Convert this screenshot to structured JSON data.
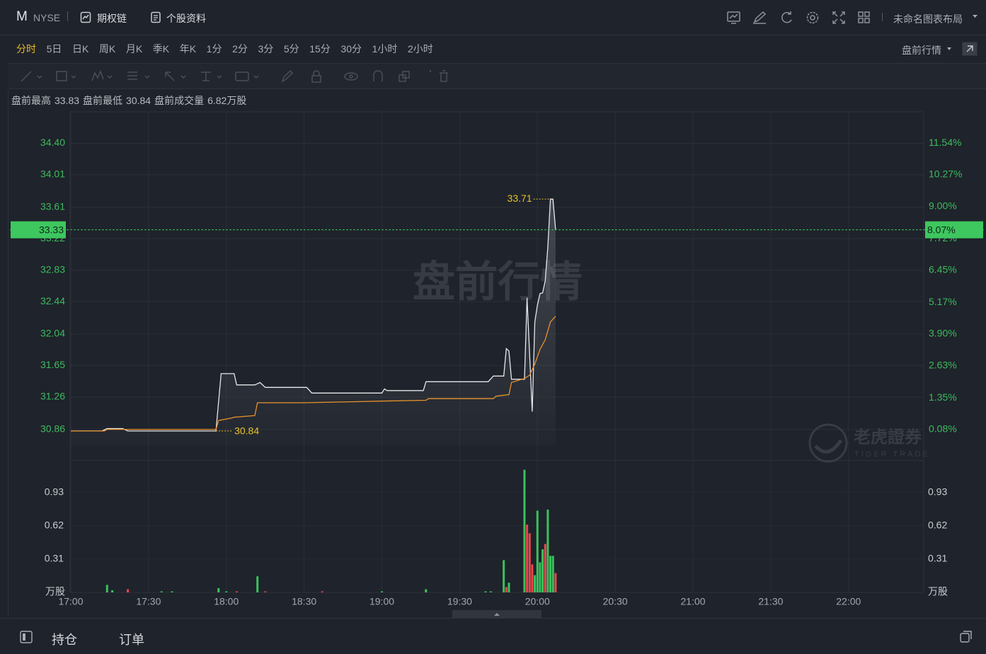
{
  "header": {
    "symbol": "M",
    "exchange": "NYSE",
    "links": [
      "期权链",
      "个股资料"
    ],
    "layout": "未命名图表布局"
  },
  "periods": {
    "items": [
      "分时",
      "5日",
      "日K",
      "周K",
      "月K",
      "季K",
      "年K",
      "1分",
      "2分",
      "3分",
      "5分",
      "15分",
      "30分",
      "1小时",
      "2小时"
    ],
    "active": 0,
    "session": "盘前行情"
  },
  "info": {
    "items": [
      {
        "label": "盘前最高",
        "value": 33.83
      },
      {
        "label": "盘前最低",
        "value": 30.84
      },
      {
        "label": "盘前成交量",
        "value": "6.82万股"
      }
    ]
  },
  "chart_data": {
    "type": "line",
    "xlim": [
      "17:00",
      "22:29"
    ],
    "xticks": [
      "17:00",
      "17:30",
      "18:00",
      "18:30",
      "19:00",
      "19:30",
      "20:00",
      "20:30",
      "21:00",
      "21:30",
      "22:00"
    ],
    "ylim": [
      30.48,
      34.79
    ],
    "yticks": [
      {
        "value": 34.4,
        "label": "34.40"
      },
      34.01,
      33.61,
      33.22,
      32.83,
      32.44,
      32.04,
      31.65,
      31.26,
      30.86
    ],
    "y2lim": [
      -1.14,
      12.79
    ],
    "y2ticks": [
      {
        "value": 11.54,
        "label": "11.54%"
      },
      {
        "value": 10.27,
        "label": "10.27%"
      },
      {
        "value": 9.0,
        "label": "9.00%"
      },
      {
        "value": 7.72,
        "label": "7.72%"
      },
      {
        "value": 6.45,
        "label": "6.45%"
      },
      {
        "value": 5.17,
        "label": "5.17%"
      },
      {
        "value": 3.9,
        "label": "3.90%"
      },
      {
        "value": 2.63,
        "label": "2.63%"
      },
      {
        "value": 1.35,
        "label": "1.35%"
      },
      {
        "value": 0.08,
        "label": "0.08%"
      }
    ],
    "grid": true,
    "series": [
      {
        "color": "#e6e8ec",
        "x": [
          "17:00",
          "17:12",
          "17:14",
          "17:20",
          "17:22",
          "17:56",
          "17:58",
          "18:03",
          "18:04",
          "18:11",
          "18:13",
          "18:15",
          "18:31",
          "18:33",
          "19:00",
          "19:01",
          "19:02",
          "19:16",
          "19:17",
          "19:41",
          "19:43",
          "19:47",
          "19:48",
          "19:49",
          "19:50",
          "19:55",
          "19:56",
          "19:58",
          "19:59",
          "20:00",
          "20:01",
          "20:02",
          "20:03",
          "20:04",
          "20:05",
          "20:06",
          "20:07"
        ],
        "values": [
          30.84,
          30.84,
          30.87,
          30.87,
          30.84,
          30.84,
          31.55,
          31.55,
          31.41,
          31.41,
          31.44,
          31.38,
          31.38,
          31.31,
          31.31,
          31.36,
          31.34,
          31.34,
          31.45,
          31.45,
          31.52,
          31.52,
          31.86,
          31.83,
          31.48,
          31.48,
          32.49,
          31.08,
          32.19,
          32.4,
          32.54,
          32.55,
          32.7,
          33.11,
          33.71,
          33.71,
          33.33
        ]
      },
      {
        "color": "#e8922e",
        "x": [
          "17:00",
          "17:13",
          "17:14",
          "17:56",
          "17:57",
          "18:02",
          "18:03",
          "18:11",
          "18:12",
          "18:30",
          "19:00",
          "19:17",
          "19:18",
          "19:43",
          "19:44",
          "19:49",
          "19:50",
          "19:55",
          "19:57",
          "19:59",
          "20:01",
          "20:03",
          "20:05",
          "20:07"
        ],
        "values": [
          30.84,
          30.84,
          30.86,
          30.86,
          30.97,
          31.0,
          31.01,
          31.03,
          31.19,
          31.19,
          31.21,
          31.22,
          31.24,
          31.24,
          31.27,
          31.29,
          31.44,
          31.49,
          31.53,
          31.67,
          31.85,
          31.97,
          32.19,
          32.26
        ]
      }
    ],
    "max_annotation": {
      "x": "20:05",
      "value": 33.71
    },
    "min_annotation": {
      "x": "17:56",
      "value": 30.84
    },
    "last_price": 33.33,
    "last_pct": {
      "value": 8.07,
      "label": "8.07%"
    },
    "volume": {
      "unit": "万股",
      "ylim": [
        0,
        1.23
      ],
      "yticks": [
        0.93,
        0.62,
        0.31
      ],
      "x": [
        "17:14",
        "17:16",
        "17:22",
        "17:35",
        "17:39",
        "17:57",
        "18:00",
        "18:04",
        "18:12",
        "18:15",
        "18:37",
        "19:00",
        "19:17",
        "19:40",
        "19:42",
        "19:47",
        "19:48",
        "19:49",
        "19:55",
        "19:56",
        "19:57",
        "19:58",
        "19:59",
        "20:00",
        "20:01",
        "20:02",
        "20:03",
        "20:04",
        "20:05",
        "20:06",
        "20:07"
      ],
      "values": [
        0.07,
        0.02,
        0.03,
        0.01,
        0.01,
        0.04,
        0.01,
        0.01,
        0.15,
        0.01,
        0.01,
        0.01,
        0.03,
        0.01,
        0.01,
        0.3,
        0.05,
        0.09,
        1.14,
        0.63,
        0.55,
        0.26,
        0.16,
        0.76,
        0.28,
        0.4,
        0.45,
        0.77,
        0.34,
        0.34,
        0.18
      ],
      "colors": [
        "#3ac25d",
        "#3ac25d",
        "#e8474c",
        "#3ac25d",
        "#3ac25d",
        "#3ac25d",
        "#3ac25d",
        "#e8474c",
        "#3ac25d",
        "#e8474c",
        "#e8474c",
        "#3ac25d",
        "#3ac25d",
        "#3ac25d",
        "#3ac25d",
        "#3ac25d",
        "#e8474c",
        "#3ac25d",
        "#3ac25d",
        "#e8474c",
        "#e8474c",
        "#e8474c",
        "#3ac25d",
        "#3ac25d",
        "#3ac25d",
        "#3ac25d",
        "#e8474c",
        "#3ac25d",
        "#3ac25d",
        "#3ac25d",
        "#e8474c"
      ]
    }
  },
  "watermark": {
    "text": "盘前行情",
    "brand": "老虎證券",
    "brand_en": "TIGER TRADE"
  },
  "footer": {
    "tabs": [
      "持仓",
      "订单"
    ]
  }
}
